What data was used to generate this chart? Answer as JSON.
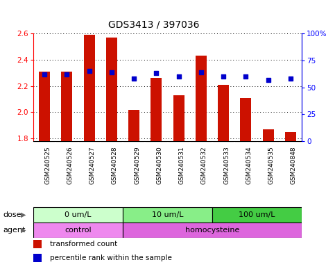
{
  "title": "GDS3413 / 397036",
  "samples": [
    "GSM240525",
    "GSM240526",
    "GSM240527",
    "GSM240528",
    "GSM240529",
    "GSM240530",
    "GSM240531",
    "GSM240532",
    "GSM240533",
    "GSM240534",
    "GSM240535",
    "GSM240848"
  ],
  "red_values": [
    2.31,
    2.31,
    2.59,
    2.57,
    2.02,
    2.26,
    2.13,
    2.43,
    2.21,
    2.11,
    1.87,
    1.85
  ],
  "blue_values": [
    62,
    62,
    65,
    64,
    58,
    63,
    60,
    64,
    60,
    60,
    57,
    58
  ],
  "y_min": 1.78,
  "y_max": 2.6,
  "y_ticks": [
    1.8,
    2.0,
    2.2,
    2.4,
    2.6
  ],
  "y2_ticks": [
    0,
    25,
    50,
    75,
    100
  ],
  "y2_labels": [
    "0",
    "25",
    "50",
    "75",
    "100%"
  ],
  "dose_groups": [
    {
      "label": "0 um/L",
      "start": 0,
      "end": 4,
      "color": "#ccffcc"
    },
    {
      "label": "10 um/L",
      "start": 4,
      "end": 8,
      "color": "#88ee88"
    },
    {
      "label": "100 um/L",
      "start": 8,
      "end": 12,
      "color": "#44cc44"
    }
  ],
  "agent_groups": [
    {
      "label": "control",
      "start": 0,
      "end": 4,
      "color": "#ee88ee"
    },
    {
      "label": "homocysteine",
      "start": 4,
      "end": 12,
      "color": "#dd66dd"
    }
  ],
  "bar_color": "#cc1100",
  "dot_color": "#0000cc",
  "dot_size": 14,
  "bar_width": 0.5,
  "legend_items": [
    {
      "color": "#cc1100",
      "label": "transformed count"
    },
    {
      "color": "#0000cc",
      "label": "percentile rank within the sample"
    }
  ],
  "grid_color": "#000000",
  "plot_bg_color": "#ffffff",
  "outer_bg_color": "#ffffff",
  "label_bg_color": "#cccccc",
  "title_fontsize": 10,
  "tick_fontsize": 7.5,
  "sample_fontsize": 6.5,
  "dose_fontsize": 8,
  "legend_fontsize": 7.5
}
